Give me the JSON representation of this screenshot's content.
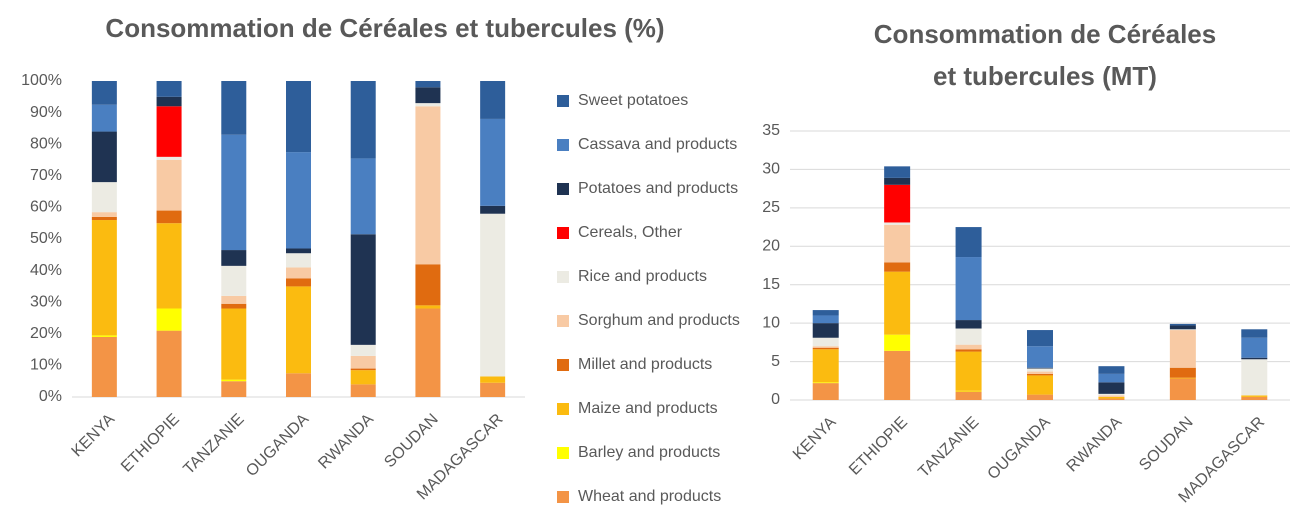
{
  "chart_data": [
    {
      "type": "bar",
      "stacked": true,
      "title": "Consommation de Céréales et tubercules (%)",
      "categories": [
        "KENYA",
        "ETHIOPIE",
        "TANZANIE",
        "OUGANDA",
        "RWANDA",
        "SOUDAN",
        "MADAGASCAR"
      ],
      "ylim": [
        0,
        100
      ],
      "yticks": [
        {
          "value": 0,
          "label": "0%"
        },
        {
          "value": 10,
          "label": "10%"
        },
        {
          "value": 20,
          "label": "20%"
        },
        {
          "value": 30,
          "label": "30%"
        },
        {
          "value": 40,
          "label": "40%"
        },
        {
          "value": 50,
          "label": "50%"
        },
        {
          "value": 60,
          "label": "60%"
        },
        {
          "value": 70,
          "label": "70%"
        },
        {
          "value": 80,
          "label": "80%"
        },
        {
          "value": 90,
          "label": "90%"
        },
        {
          "value": 100,
          "label": "100%"
        }
      ],
      "grid": false,
      "legend": "right",
      "series": [
        {
          "name": "Wheat and products",
          "color": "#f39446",
          "values": [
            19,
            21,
            5,
            7.5,
            4,
            28,
            4.5
          ]
        },
        {
          "name": "Barley and products",
          "color": "#ffff00",
          "values": [
            0.5,
            7,
            0.5,
            0,
            0,
            0,
            0
          ]
        },
        {
          "name": "Maize and products",
          "color": "#fbbb10",
          "values": [
            36.5,
            27,
            22.5,
            27.5,
            4.5,
            1,
            2
          ]
        },
        {
          "name": "Millet and products",
          "color": "#e06b10",
          "values": [
            1,
            4,
            1.5,
            2.5,
            0.5,
            13,
            0
          ]
        },
        {
          "name": "Sorghum and products",
          "color": "#f8caa4",
          "values": [
            1.5,
            16,
            2.5,
            3.5,
            4,
            50,
            0
          ]
        },
        {
          "name": "Rice and products",
          "color": "#ecebe3",
          "values": [
            9.5,
            1,
            9.5,
            4.5,
            3.5,
            1,
            51.5
          ]
        },
        {
          "name": "Cereals, Other",
          "color": "#ff0000",
          "values": [
            0,
            16,
            0,
            0,
            0,
            0,
            0
          ]
        },
        {
          "name": "Potatoes and products",
          "color": "#1f3352",
          "values": [
            16,
            3,
            5,
            1.5,
            35,
            5,
            2.5
          ]
        },
        {
          "name": "Cassava and products",
          "color": "#4a7fc1",
          "values": [
            8.5,
            0,
            36.5,
            30.5,
            24,
            0,
            27.5
          ]
        },
        {
          "name": "Sweet potatoes",
          "color": "#2e5e9a",
          "values": [
            7.5,
            5,
            17,
            22.5,
            24.5,
            2,
            12
          ]
        }
      ]
    },
    {
      "type": "bar",
      "stacked": true,
      "title": [
        "Consommation de Céréales",
        "et tubercules (MT)"
      ],
      "categories": [
        "KENYA",
        "ETHIOPIE",
        "TANZANIE",
        "OUGANDA",
        "RWANDA",
        "SOUDAN",
        "MADAGASCAR"
      ],
      "ylim": [
        0,
        35
      ],
      "yticks": [
        0,
        5,
        10,
        15,
        20,
        25,
        30,
        35
      ],
      "grid": true,
      "series": [
        {
          "color": "#f39446",
          "values": [
            2.2,
            6.4,
            1.1,
            0.7,
            0.2,
            2.8,
            0.4
          ]
        },
        {
          "color": "#ffff00",
          "values": [
            0.1,
            2.1,
            0.1,
            0,
            0,
            0,
            0
          ]
        },
        {
          "color": "#fbbb10",
          "values": [
            4.3,
            8.2,
            5.1,
            2.5,
            0.2,
            0.1,
            0.2
          ]
        },
        {
          "color": "#e06b10",
          "values": [
            0.2,
            1.2,
            0.3,
            0.2,
            0,
            1.3,
            0
          ]
        },
        {
          "color": "#f8caa4",
          "values": [
            0.2,
            4.9,
            0.6,
            0.3,
            0.2,
            4.9,
            0
          ]
        },
        {
          "color": "#ecebe3",
          "values": [
            1.1,
            0.3,
            2.1,
            0.4,
            0.2,
            0.1,
            4.7
          ]
        },
        {
          "color": "#ff0000",
          "values": [
            0,
            4.9,
            0,
            0,
            0,
            0,
            0
          ]
        },
        {
          "color": "#1f3352",
          "values": [
            1.9,
            0.9,
            1.1,
            0.1,
            1.5,
            0.5,
            0.2
          ]
        },
        {
          "color": "#4a7fc1",
          "values": [
            1.0,
            0,
            8.2,
            2.8,
            1.1,
            0,
            2.6
          ]
        },
        {
          "color": "#2e5e9a",
          "values": [
            0.7,
            1.5,
            3.9,
            2.1,
            1.0,
            0.2,
            1.1
          ]
        }
      ]
    }
  ]
}
